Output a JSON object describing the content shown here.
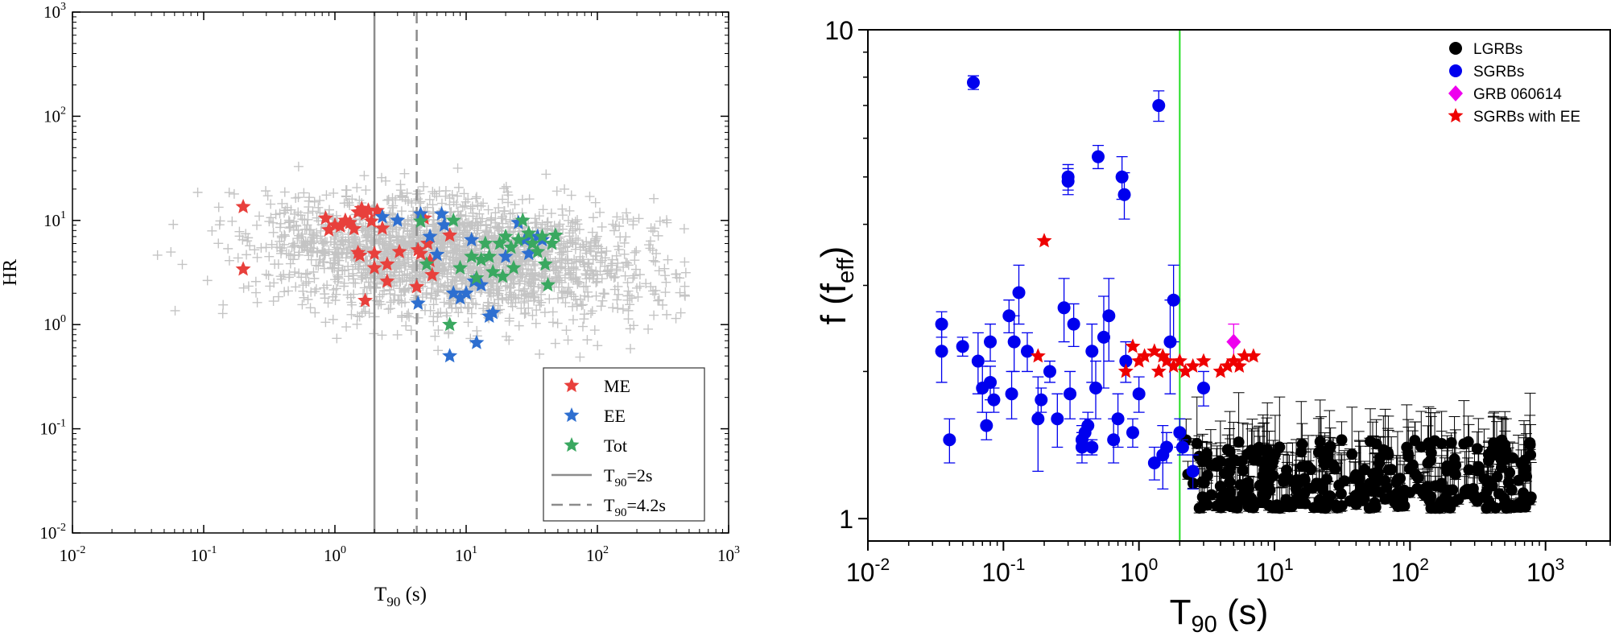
{
  "chart_data": [
    {
      "type": "scatter",
      "xlabel": "T",
      "xlabel_sub": "90",
      "xlabel_unit": "(s)",
      "ylabel": "HR",
      "xscale": "log",
      "yscale": "log",
      "xlim": [
        0.01,
        1000
      ],
      "ylim": [
        0.01,
        1000
      ],
      "x_ticks": [
        {
          "base": "10",
          "exp": "-2",
          "value": 0.01
        },
        {
          "base": "10",
          "exp": "-1",
          "value": 0.1
        },
        {
          "base": "10",
          "exp": "0",
          "value": 1
        },
        {
          "base": "10",
          "exp": "1",
          "value": 10
        },
        {
          "base": "10",
          "exp": "2",
          "value": 100
        },
        {
          "base": "10",
          "exp": "3",
          "value": 1000
        }
      ],
      "y_ticks": [
        {
          "base": "10",
          "exp": "-2",
          "value": 0.01
        },
        {
          "base": "10",
          "exp": "-1",
          "value": 0.1
        },
        {
          "base": "10",
          "exp": "0",
          "value": 1
        },
        {
          "base": "10",
          "exp": "1",
          "value": 10
        },
        {
          "base": "10",
          "exp": "2",
          "value": 100
        },
        {
          "base": "10",
          "exp": "3",
          "value": 1000
        }
      ],
      "legend_position": "bottom-right",
      "legend": [
        {
          "label": "ME",
          "marker": "star",
          "color": "#e8403c"
        },
        {
          "label": "EE",
          "marker": "star",
          "color": "#2e6fd0"
        },
        {
          "label": "Tot",
          "marker": "star",
          "color": "#3aa860"
        },
        {
          "label": "=2s",
          "prefix": "T",
          "sub": "90",
          "marker": "solid-line",
          "color": "#8c8c8c"
        },
        {
          "label": "=4.2s",
          "prefix": "T",
          "sub": "90",
          "marker": "dashed-line",
          "color": "#8c8c8c"
        }
      ],
      "vlines": [
        {
          "x": 2,
          "style": "solid",
          "color": "#8c8c8c"
        },
        {
          "x": 4.2,
          "style": "dashed",
          "color": "#8c8c8c"
        }
      ],
      "background_series": {
        "name": "",
        "marker": "plus",
        "color": "#c4c4c4",
        "n": 2200,
        "x_log_center": 0.9,
        "x_log_spread": 0.75,
        "y_log_center": 0.65,
        "y_log_spread": 0.28
      },
      "series": [
        {
          "name": "ME",
          "marker": "star",
          "color": "#e8403c",
          "points": [
            [
              0.2,
              13.5
            ],
            [
              0.2,
              3.4
            ],
            [
              0.85,
              10.5
            ],
            [
              0.9,
              8.1
            ],
            [
              1.0,
              9.0
            ],
            [
              1.1,
              8.8
            ],
            [
              1.2,
              10.0
            ],
            [
              1.3,
              9.5
            ],
            [
              1.4,
              8.3
            ],
            [
              1.5,
              12.0
            ],
            [
              1.6,
              13.0
            ],
            [
              1.7,
              11.5
            ],
            [
              1.8,
              12.5
            ],
            [
              1.9,
              9.8
            ],
            [
              2.1,
              12.4
            ],
            [
              2.3,
              8.4
            ],
            [
              1.5,
              4.9
            ],
            [
              1.55,
              4.6
            ],
            [
              1.7,
              1.7
            ],
            [
              2.0,
              3.5
            ],
            [
              2.5,
              3.8
            ],
            [
              2.5,
              2.6
            ],
            [
              3.1,
              5.0
            ],
            [
              4.3,
              5.2
            ],
            [
              4.5,
              4.8
            ],
            [
              5.1,
              6.0
            ],
            [
              5.3,
              4.1
            ],
            [
              5.5,
              3.0
            ],
            [
              4.8,
              10.5
            ],
            [
              4.2,
              2.3
            ],
            [
              7.5,
              7.2
            ],
            [
              2.0,
              4.8
            ]
          ]
        },
        {
          "name": "EE",
          "marker": "star",
          "color": "#2e6fd0",
          "points": [
            [
              2.3,
              10.8
            ],
            [
              3.0,
              10.0
            ],
            [
              4.5,
              11.5
            ],
            [
              4.3,
              1.6
            ],
            [
              5.3,
              7.0
            ],
            [
              6.5,
              11.5
            ],
            [
              6.8,
              9.0
            ],
            [
              8.0,
              2.0
            ],
            [
              9.0,
              1.8
            ],
            [
              10.0,
              2.0
            ],
            [
              11.0,
              6.5
            ],
            [
              13.0,
              2.4
            ],
            [
              15.0,
              1.2
            ],
            [
              16.0,
              1.3
            ],
            [
              12.0,
              0.67
            ],
            [
              7.5,
              0.5
            ],
            [
              20.0,
              4.5
            ],
            [
              25.0,
              9.5
            ],
            [
              28.0,
              6.5
            ],
            [
              30.0,
              4.8
            ],
            [
              35.0,
              7.0
            ],
            [
              38.0,
              6.5
            ],
            [
              6.0,
              4.7
            ],
            [
              11.5,
              2.6
            ]
          ]
        },
        {
          "name": "Tot",
          "marker": "star",
          "color": "#3aa860",
          "points": [
            [
              4.5,
              9.8
            ],
            [
              7.5,
              1.0
            ],
            [
              8.0,
              10.0
            ],
            [
              11.0,
              4.5
            ],
            [
              12.0,
              2.8
            ],
            [
              13.0,
              4.2
            ],
            [
              14.0,
              6.0
            ],
            [
              15.0,
              4.5
            ],
            [
              16.0,
              3.2
            ],
            [
              18.0,
              6.0
            ],
            [
              20.0,
              7.0
            ],
            [
              22.0,
              5.5
            ],
            [
              23.0,
              3.5
            ],
            [
              25.0,
              6.5
            ],
            [
              27.0,
              10.0
            ],
            [
              30.0,
              7.5
            ],
            [
              32.0,
              6.0
            ],
            [
              35.0,
              5.0
            ],
            [
              38.0,
              7.0
            ],
            [
              40.0,
              3.8
            ],
            [
              42.0,
              2.4
            ],
            [
              45.0,
              6.0
            ],
            [
              48.0,
              7.2
            ],
            [
              5.0,
              3.8
            ],
            [
              9.0,
              3.5
            ],
            [
              19.0,
              2.9
            ]
          ]
        }
      ]
    },
    {
      "type": "scatter",
      "xlabel": "T",
      "xlabel_sub": "90",
      "xlabel_unit": "(s)",
      "ylabel": "f (f",
      "ylabel_sub": "eff",
      "ylabel_close": ")",
      "xscale": "log",
      "yscale": "log",
      "xlim": [
        0.01,
        3000
      ],
      "ylim": [
        0.9,
        10
      ],
      "x_ticks": [
        {
          "base": "10",
          "exp": "-2",
          "value": 0.01
        },
        {
          "base": "10",
          "exp": "-1",
          "value": 0.1
        },
        {
          "base": "10",
          "exp": "0",
          "value": 1
        },
        {
          "base": "10",
          "exp": "1",
          "value": 10
        },
        {
          "base": "10",
          "exp": "2",
          "value": 100
        },
        {
          "base": "10",
          "exp": "3",
          "value": 1000
        }
      ],
      "y_ticks": [
        {
          "label": "1",
          "value": 1
        },
        {
          "label": "10",
          "value": 10
        }
      ],
      "legend_position": "top-right",
      "legend": [
        {
          "label": "LGRBs",
          "marker": "circle",
          "color": "#000000"
        },
        {
          "label": "SGRBs",
          "marker": "circle",
          "color": "#0000ee"
        },
        {
          "label": "GRB 060614",
          "marker": "diamond",
          "color": "#ee00ee"
        },
        {
          "label": "SGRBs with EE",
          "marker": "star",
          "color": "#ee0000"
        }
      ],
      "vlines": [
        {
          "x": 2,
          "style": "solid",
          "color": "#22dd22"
        }
      ],
      "background_series": {
        "name": "LGRBs",
        "marker": "circle",
        "color": "#000000",
        "n": 330,
        "x_min": 2.2,
        "x_max": 800,
        "y_min": 1.05,
        "y_max": 1.45
      },
      "series": [
        {
          "name": "SGRBs",
          "marker": "circle",
          "color": "#0000ee",
          "points": [
            [
              0.035,
              2.5,
              0.15
            ],
            [
              0.035,
              2.2,
              0.3
            ],
            [
              0.04,
              1.45,
              0.15
            ],
            [
              0.05,
              2.25,
              0.1
            ],
            [
              0.06,
              7.8,
              0.25
            ],
            [
              0.065,
              2.1,
              0.3
            ],
            [
              0.07,
              1.85,
              0.2
            ],
            [
              0.075,
              1.55,
              0.1
            ],
            [
              0.08,
              1.9,
              0.15
            ],
            [
              0.08,
              2.3,
              0.2
            ],
            [
              0.085,
              1.75,
              0.1
            ],
            [
              0.11,
              2.6,
              0.2
            ],
            [
              0.115,
              1.8,
              0.2
            ],
            [
              0.12,
              2.3,
              0.3
            ],
            [
              0.13,
              2.9,
              0.4
            ],
            [
              0.15,
              2.2,
              0.2
            ],
            [
              0.18,
              1.6,
              0.35
            ],
            [
              0.19,
              1.75,
              0.1
            ],
            [
              0.22,
              2.0,
              0.1
            ],
            [
              0.25,
              1.6,
              0.2
            ],
            [
              0.28,
              2.7,
              0.4
            ],
            [
              0.3,
              4.9,
              0.3
            ],
            [
              0.3,
              5.0,
              0.3
            ],
            [
              0.31,
              1.8,
              0.2
            ],
            [
              0.33,
              2.5,
              0.25
            ],
            [
              0.38,
              1.4,
              0.1
            ],
            [
              0.38,
              1.45,
              0.1
            ],
            [
              0.4,
              1.5,
              0.1
            ],
            [
              0.42,
              1.55,
              0.1
            ],
            [
              0.45,
              1.4,
              0.05
            ],
            [
              0.45,
              2.2,
              0.3
            ],
            [
              0.48,
              1.85,
              0.25
            ],
            [
              0.5,
              5.5,
              0.3
            ],
            [
              0.55,
              2.35,
              0.5
            ],
            [
              0.6,
              2.6,
              0.5
            ],
            [
              0.65,
              1.45,
              0.15
            ],
            [
              0.7,
              1.6,
              0.2
            ],
            [
              0.75,
              5.0,
              0.5
            ],
            [
              0.78,
              4.6,
              0.5
            ],
            [
              0.8,
              2.1,
              0.2
            ],
            [
              1.0,
              1.8,
              0.15
            ],
            [
              0.9,
              1.5,
              0.1
            ],
            [
              1.3,
              1.3,
              0.1
            ],
            [
              1.4,
              7.0,
              0.5
            ],
            [
              1.5,
              1.35,
              0.2
            ],
            [
              1.6,
              1.4,
              0.1
            ],
            [
              1.7,
              2.3,
              0.5
            ],
            [
              1.8,
              2.8,
              0.5
            ],
            [
              2.0,
              1.5,
              0.1
            ],
            [
              2.1,
              1.4,
              0.05
            ],
            [
              2.5,
              1.25,
              0.1
            ],
            [
              3.0,
              1.85,
              0.15
            ]
          ]
        },
        {
          "name": "GRB 060614",
          "marker": "diamond",
          "color": "#ee00ee",
          "points": [
            [
              5.0,
              2.3,
              0.2
            ]
          ]
        },
        {
          "name": "SGRBs with EE",
          "marker": "star",
          "color": "#ee0000",
          "points": [
            [
              0.2,
              3.7
            ],
            [
              0.18,
              2.15
            ],
            [
              0.8,
              2.0
            ],
            [
              0.9,
              2.25
            ],
            [
              1.0,
              2.1
            ],
            [
              1.1,
              2.15
            ],
            [
              1.3,
              2.2
            ],
            [
              1.4,
              2.0
            ],
            [
              1.5,
              2.15
            ],
            [
              1.6,
              2.1
            ],
            [
              1.8,
              2.05
            ],
            [
              2.0,
              2.1
            ],
            [
              2.2,
              2.0
            ],
            [
              2.5,
              2.05
            ],
            [
              3.0,
              2.1
            ],
            [
              4.0,
              2.0
            ],
            [
              4.5,
              2.05
            ],
            [
              5.0,
              2.1
            ],
            [
              5.5,
              2.05
            ],
            [
              6.0,
              2.15
            ],
            [
              7.0,
              2.15
            ]
          ]
        }
      ]
    }
  ]
}
